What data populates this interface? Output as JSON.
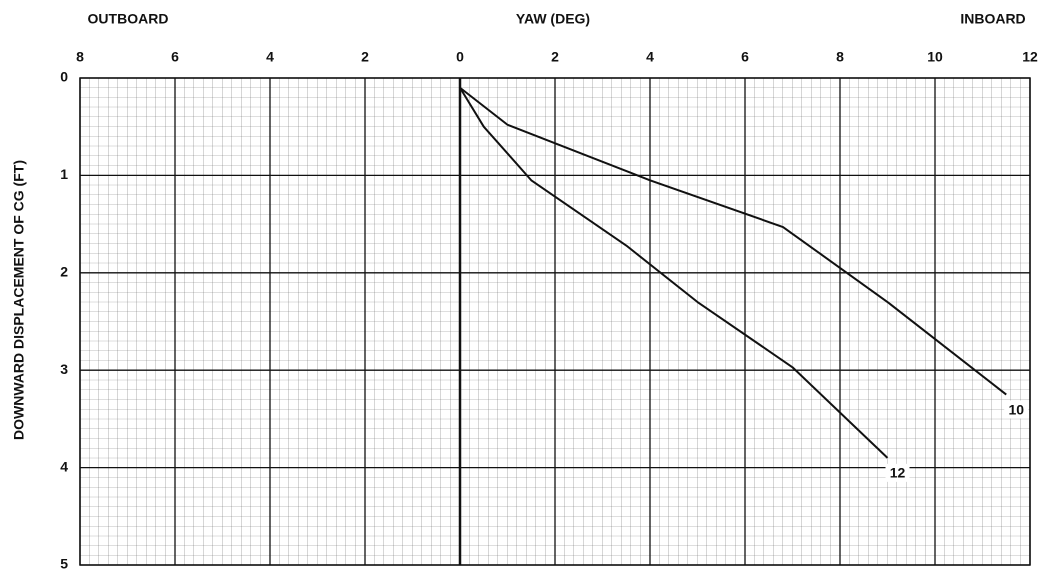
{
  "chart_data": {
    "type": "line",
    "title": "YAW (DEG)",
    "left_label": "OUTBOARD",
    "right_label": "INBOARD",
    "y_label": "DOWNWARD DISPLACEMENT OF CG (FT)",
    "xlim": [
      -8,
      12
    ],
    "xticks": [
      {
        "value": -8,
        "label": "8"
      },
      {
        "value": -6,
        "label": "6"
      },
      {
        "value": -4,
        "label": "4"
      },
      {
        "value": -2,
        "label": "2"
      },
      0,
      2,
      4,
      6,
      8,
      10,
      12
    ],
    "ylim": [
      0,
      5
    ],
    "yticks": [
      0,
      1,
      2,
      3,
      4,
      5
    ],
    "y_inverted": true,
    "grid": true,
    "series": [
      {
        "name": "10",
        "color": "#111111",
        "x": [
          0,
          1,
          4,
          6.8,
          9,
          11.5
        ],
        "values": [
          0.1,
          0.48,
          1.05,
          1.53,
          2.3,
          3.25
        ]
      },
      {
        "name": "12",
        "color": "#111111",
        "x": [
          0,
          0.5,
          1.5,
          3.5,
          5,
          7,
          9
        ],
        "values": [
          0.1,
          0.5,
          1.05,
          1.72,
          2.3,
          2.97,
          3.9
        ]
      }
    ]
  }
}
